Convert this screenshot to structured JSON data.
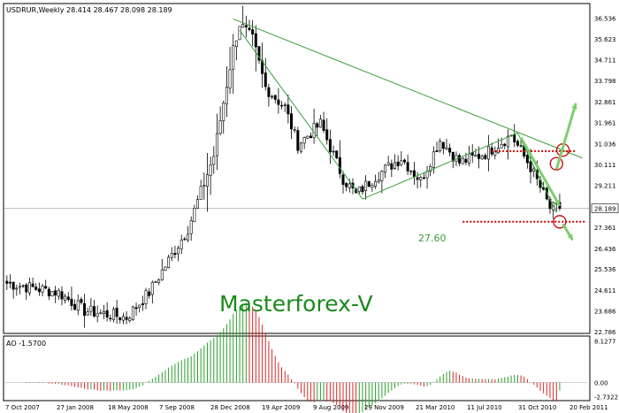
{
  "header": {
    "title": "USDRUR,Weekly  28.414 28.467 28.098 28.189"
  },
  "indicator": {
    "label": "AO -1.5700"
  },
  "watermark": "Masterforex-V",
  "annotation_level": "27.60",
  "chart_data": [
    {
      "type": "candlestick",
      "symbol": "USDRUR",
      "timeframe": "Weekly",
      "ohlc_last": {
        "open": 28.414,
        "high": 28.467,
        "low": 28.098,
        "close": 28.189
      },
      "ylim": [
        22.78,
        37.1
      ],
      "y_ticks": [
        "36.536",
        "35.623",
        "34.711",
        "33.798",
        "32.861",
        "31.961",
        "31.036",
        "30.111",
        "29.211",
        "28.189",
        "27.361",
        "26.436",
        "25.536",
        "24.611",
        "23.686",
        "22.786"
      ],
      "y_tick_values": [
        36.536,
        35.623,
        34.711,
        33.798,
        32.861,
        31.961,
        31.036,
        30.111,
        29.211,
        28.189,
        27.361,
        26.436,
        25.536,
        24.611,
        23.686,
        22.786
      ],
      "current_price_label": "28.189",
      "current_price": 28.189,
      "x_ticks": [
        "7 Oct 2007",
        "27 Jan 2008",
        "18 May 2008",
        "7 Sep 2008",
        "28 Dec 2008",
        "19 Apr 2009",
        "9 Aug 2009",
        "29 Nov 2009",
        "21 Mar 2010",
        "11 Jul 2010",
        "31 Oct 2010",
        "20 Feb 2011"
      ],
      "bars": 180,
      "key_points": [
        {
          "bar": 0,
          "price": 24.9
        },
        {
          "bar": 16,
          "price": 24.5
        },
        {
          "bar": 24,
          "price": 23.7
        },
        {
          "bar": 37,
          "price": 23.4
        },
        {
          "bar": 44,
          "price": 24.5
        },
        {
          "bar": 56,
          "price": 27.3
        },
        {
          "bar": 64,
          "price": 30.5
        },
        {
          "bar": 70,
          "price": 35.2
        },
        {
          "bar": 72,
          "price": 36.3
        },
        {
          "bar": 76,
          "price": 35.6
        },
        {
          "bar": 80,
          "price": 33.5
        },
        {
          "bar": 86,
          "price": 32.6
        },
        {
          "bar": 90,
          "price": 31.0
        },
        {
          "bar": 97,
          "price": 31.9
        },
        {
          "bar": 104,
          "price": 29.5
        },
        {
          "bar": 108,
          "price": 28.8
        },
        {
          "bar": 114,
          "price": 29.6
        },
        {
          "bar": 122,
          "price": 30.4
        },
        {
          "bar": 128,
          "price": 29.4
        },
        {
          "bar": 134,
          "price": 31.2
        },
        {
          "bar": 140,
          "price": 30.2
        },
        {
          "bar": 148,
          "price": 30.6
        },
        {
          "bar": 156,
          "price": 31.4
        },
        {
          "bar": 162,
          "price": 30.0
        },
        {
          "bar": 168,
          "price": 28.2
        },
        {
          "bar": 171,
          "price": 28.19
        }
      ],
      "levels": [
        {
          "price": 30.7,
          "color": "#cc0000"
        },
        {
          "price": 27.6,
          "color": "#cc0000"
        }
      ],
      "trendlines": [
        {
          "from": {
            "bar": 70,
            "price": 36.5
          },
          "to": {
            "bar": 178,
            "price": 30.4
          }
        },
        {
          "from": {
            "bar": 72,
            "price": 36.0
          },
          "to": {
            "bar": 110,
            "price": 28.6
          }
        },
        {
          "from": {
            "bar": 110,
            "price": 28.6
          },
          "to": {
            "bar": 158,
            "price": 31.5
          }
        },
        {
          "from": {
            "bar": 158,
            "price": 31.5
          },
          "to": {
            "bar": 170,
            "price": 28.0
          }
        }
      ]
    },
    {
      "type": "bar",
      "indicator": "AO",
      "current_value": -1.57,
      "ylim": [
        -3.2,
        8.6
      ],
      "y_ticks": [
        "8.1277",
        "0.00",
        "-2.7322"
      ],
      "y_tick_values": [
        8.1277,
        0.0,
        -2.7322
      ]
    }
  ]
}
